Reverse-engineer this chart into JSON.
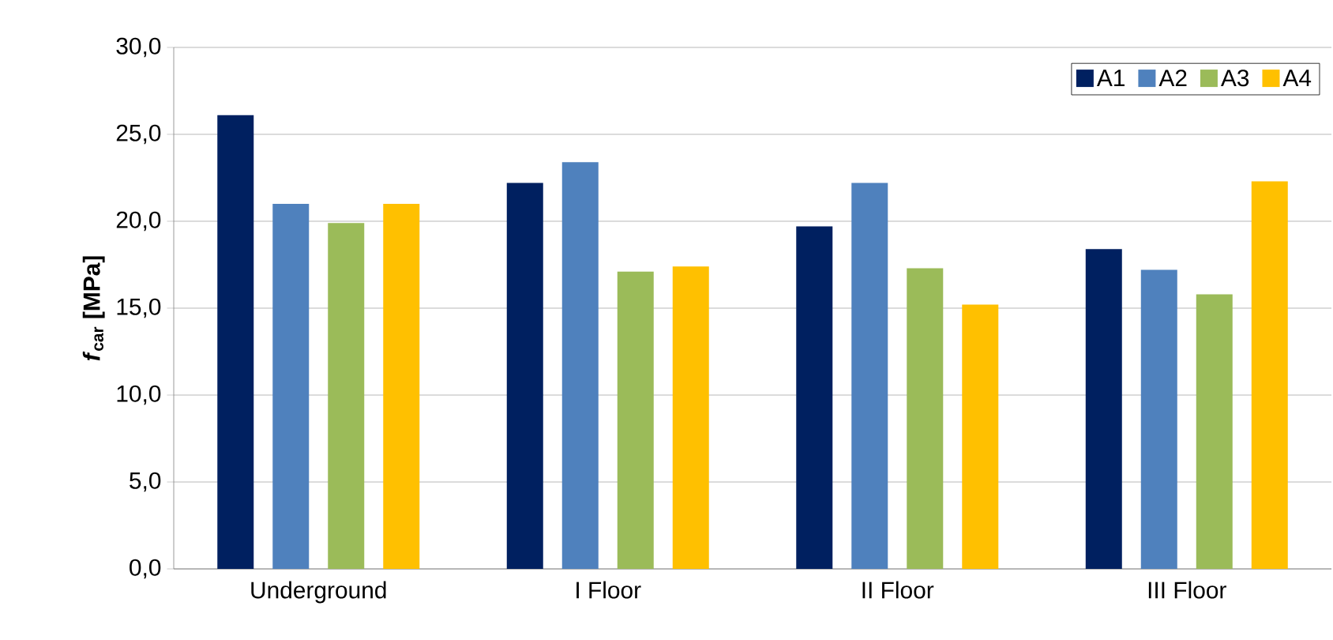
{
  "chart_data": {
    "type": "bar",
    "ylabel": "*f*$_{car}$ [MPa]",
    "categories": [
      "Underground",
      "I Floor",
      "II Floor",
      "III Floor"
    ],
    "series": [
      {
        "name": "A1",
        "color": "#002060",
        "values": [
          26.1,
          22.2,
          19.7,
          18.4
        ]
      },
      {
        "name": "A2",
        "color": "#4f81bd",
        "values": [
          21.0,
          23.4,
          22.2,
          17.2
        ]
      },
      {
        "name": "A3",
        "color": "#9bbb59",
        "values": [
          19.9,
          17.1,
          17.3,
          15.8
        ]
      },
      {
        "name": "A4",
        "color": "#ffc000",
        "values": [
          21.0,
          17.4,
          15.2,
          22.3
        ]
      }
    ],
    "ylim": [
      0,
      30
    ],
    "yticks": [
      {
        "value": 0,
        "label": "0,0"
      },
      {
        "value": 5,
        "label": "5,0"
      },
      {
        "value": 10,
        "label": "10,0"
      },
      {
        "value": 15,
        "label": "15,0"
      },
      {
        "value": 20,
        "label": "20,0"
      },
      {
        "value": 25,
        "label": "25,0"
      },
      {
        "value": 30,
        "label": "30,0"
      }
    ],
    "grid": "y",
    "legend": "top right"
  }
}
